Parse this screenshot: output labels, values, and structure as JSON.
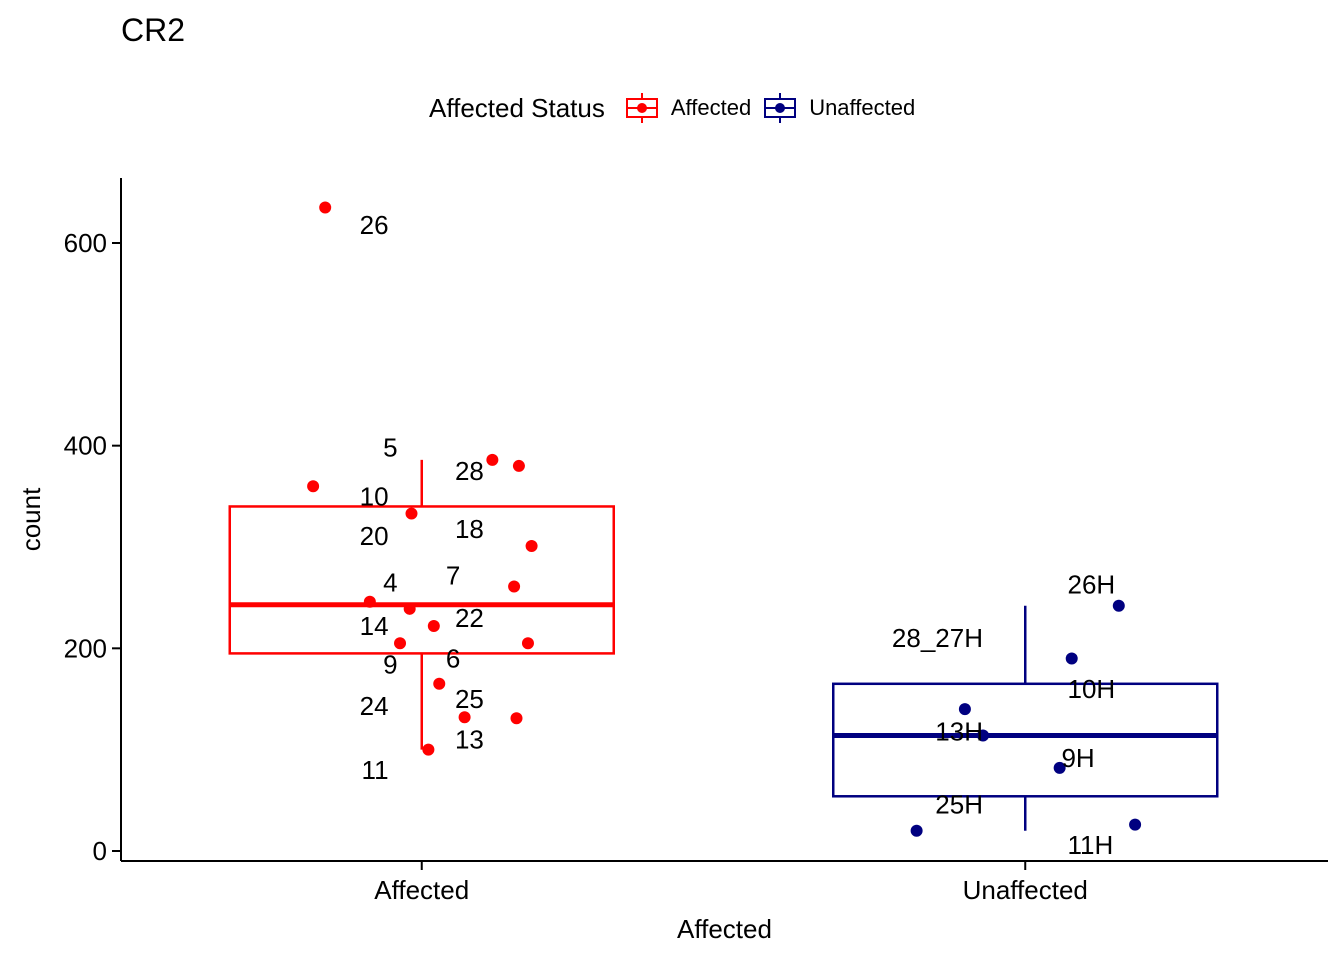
{
  "chart_data": {
    "type": "box",
    "title": "CR2",
    "xlabel": "Affected",
    "ylabel": "count",
    "categories": [
      "Affected",
      "Unaffected"
    ],
    "ylim": [
      -10,
      660
    ],
    "yticks": [
      0,
      200,
      400,
      600
    ],
    "legend": {
      "title": "Affected Status",
      "placement": "top",
      "entries": [
        {
          "name": "Affected",
          "color": "#FF0000"
        },
        {
          "name": "Unaffected",
          "color": "#000080"
        }
      ]
    },
    "series": [
      {
        "name": "Affected",
        "color": "#FF0000",
        "box": {
          "whisker_low": 100,
          "q1": 195,
          "median": 243,
          "q3": 340,
          "whisker_high": 386
        },
        "points": [
          {
            "jx": -0.16,
            "y": 635
          },
          {
            "jx": 0.117,
            "y": 386
          },
          {
            "jx": 0.161,
            "y": 380
          },
          {
            "jx": -0.18,
            "y": 360
          },
          {
            "jx": -0.017,
            "y": 333
          },
          {
            "jx": 0.182,
            "y": 301
          },
          {
            "jx": 0.153,
            "y": 261
          },
          {
            "jx": -0.086,
            "y": 246
          },
          {
            "jx": -0.02,
            "y": 239
          },
          {
            "jx": 0.02,
            "y": 222
          },
          {
            "jx": -0.036,
            "y": 205
          },
          {
            "jx": 0.176,
            "y": 205
          },
          {
            "jx": 0.029,
            "y": 165
          },
          {
            "jx": 0.071,
            "y": 132
          },
          {
            "jx": 0.157,
            "y": 131
          },
          {
            "jx": 0.011,
            "y": 100
          }
        ],
        "labels": [
          {
            "text": "26",
            "jx": -0.055,
            "y": 618
          },
          {
            "text": "5",
            "jx": -0.04,
            "y": 398
          },
          {
            "text": "28",
            "jx": 0.055,
            "y": 375
          },
          {
            "text": "10",
            "jx": -0.055,
            "y": 350
          },
          {
            "text": "18",
            "jx": 0.055,
            "y": 318
          },
          {
            "text": "20",
            "jx": -0.055,
            "y": 311
          },
          {
            "text": "7",
            "jx": 0.04,
            "y": 272
          },
          {
            "text": "4",
            "jx": -0.04,
            "y": 265
          },
          {
            "text": "22",
            "jx": 0.055,
            "y": 230
          },
          {
            "text": "14",
            "jx": -0.055,
            "y": 222
          },
          {
            "text": "6",
            "jx": 0.04,
            "y": 190
          },
          {
            "text": "9",
            "jx": -0.04,
            "y": 184
          },
          {
            "text": "25",
            "jx": 0.055,
            "y": 150
          },
          {
            "text": "24",
            "jx": -0.055,
            "y": 143
          },
          {
            "text": "13",
            "jx": 0.055,
            "y": 110
          },
          {
            "text": "11",
            "jx": -0.055,
            "y": 80
          }
        ]
      },
      {
        "name": "Unaffected",
        "color": "#000080",
        "box": {
          "whisker_low": 20,
          "q1": 54,
          "median": 114,
          "q3": 165,
          "whisker_high": 242
        },
        "points": [
          {
            "jx": 0.155,
            "y": 242
          },
          {
            "jx": 0.077,
            "y": 190
          },
          {
            "jx": -0.1,
            "y": 140
          },
          {
            "jx": -0.07,
            "y": 114
          },
          {
            "jx": 0.057,
            "y": 82
          },
          {
            "jx": -0.18,
            "y": 20
          },
          {
            "jx": 0.182,
            "y": 26
          }
        ],
        "labels": [
          {
            "text": "26H",
            "jx": 0.07,
            "y": 263
          },
          {
            "text": "28_27H",
            "jx": -0.07,
            "y": 210
          },
          {
            "text": "10H",
            "jx": 0.07,
            "y": 160
          },
          {
            "text": "13H",
            "jx": -0.07,
            "y": 118
          },
          {
            "text": "9H",
            "jx": 0.06,
            "y": 92
          },
          {
            "text": "25H",
            "jx": -0.07,
            "y": 46
          },
          {
            "text": "11H",
            "jx": 0.07,
            "y": 6
          }
        ]
      }
    ]
  }
}
